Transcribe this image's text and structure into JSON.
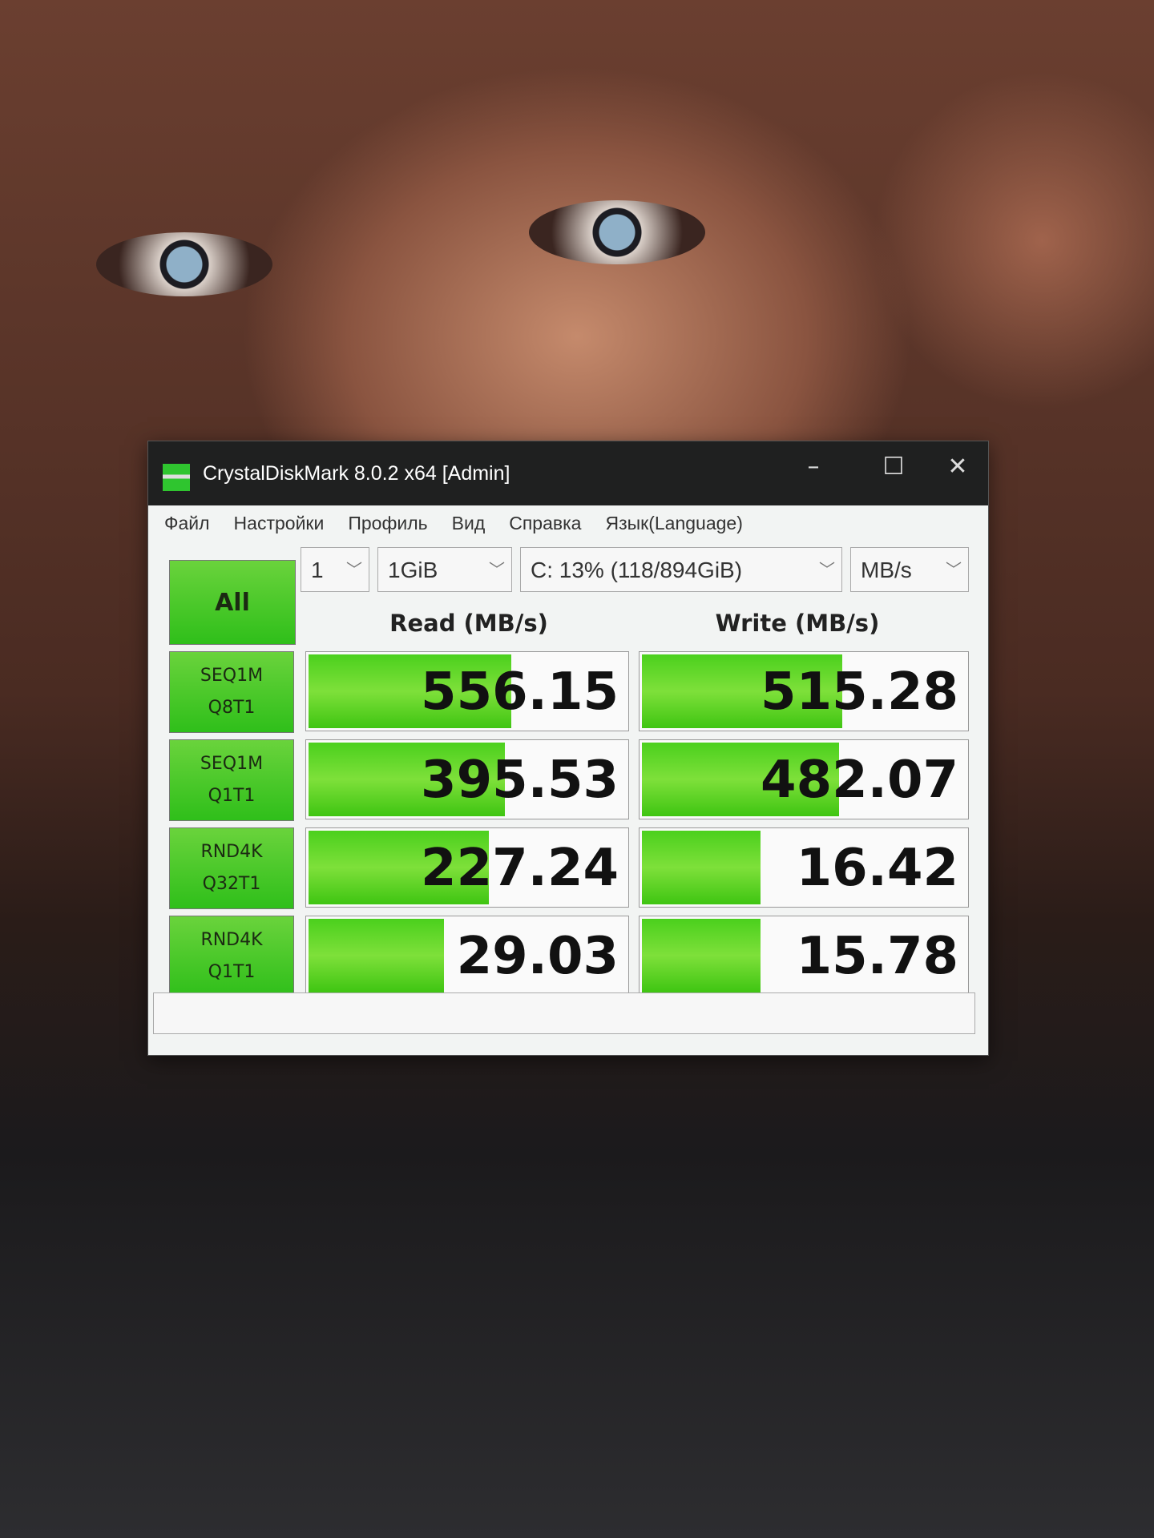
{
  "window": {
    "title": "CrystalDiskMark 8.0.2 x64 [Admin]",
    "icons": [
      "app-icon",
      "minimize-icon",
      "maximize-icon",
      "close-icon"
    ]
  },
  "menu": [
    "Файл",
    "Настройки",
    "Профиль",
    "Вид",
    "Справка",
    "Язык(Language)"
  ],
  "controls": {
    "count": "1",
    "size": "1GiB",
    "drive": "C: 13% (118/894GiB)",
    "unit": "MB/s",
    "all_label": "All"
  },
  "headers": {
    "read": "Read (MB/s)",
    "write": "Write (MB/s)"
  },
  "rows": [
    {
      "l1": "SEQ1M",
      "l2": "Q8T1",
      "read": "556.15",
      "write": "515.28",
      "read_fill": 0.63,
      "write_fill": 0.61
    },
    {
      "l1": "SEQ1M",
      "l2": "Q1T1",
      "read": "395.53",
      "write": "482.07",
      "read_fill": 0.61,
      "write_fill": 0.6
    },
    {
      "l1": "RND4K",
      "l2": "Q32T1",
      "read": "227.24",
      "write": "16.42",
      "read_fill": 0.56,
      "write_fill": 0.36
    },
    {
      "l1": "RND4K",
      "l2": "Q1T1",
      "read": "29.03",
      "write": "15.78",
      "read_fill": 0.42,
      "write_fill": 0.36
    }
  ],
  "colors": {
    "accent_green": "#4bd01d",
    "titlebar": "#1f2020"
  }
}
